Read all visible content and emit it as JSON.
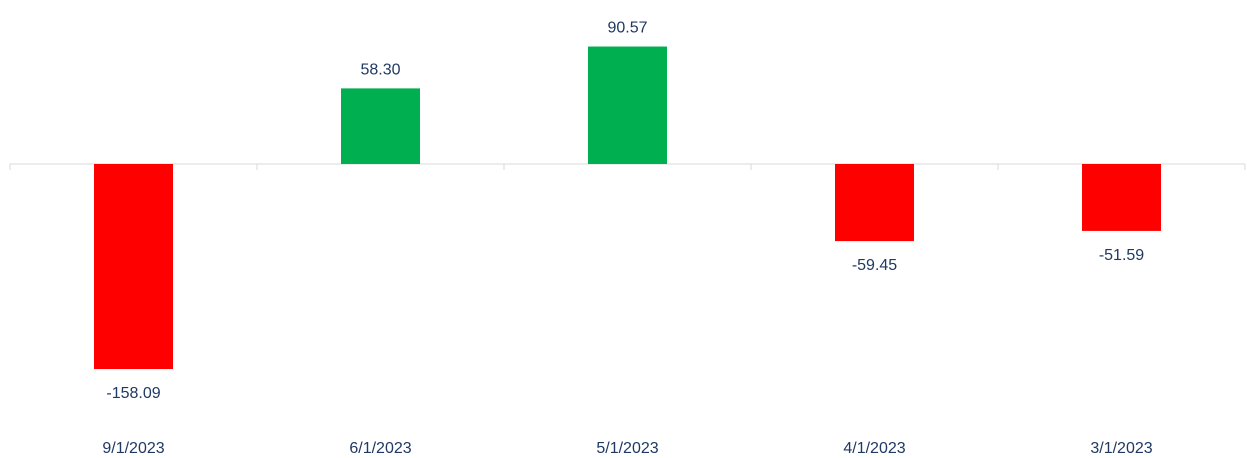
{
  "colors": {
    "positive": "#00b050",
    "negative": "#ff0000",
    "text": "#1f3864",
    "axis": "#d9d9d9",
    "background": "#ffffff"
  },
  "chart_data": {
    "type": "bar",
    "categories": [
      "9/1/2023",
      "6/1/2023",
      "5/1/2023",
      "4/1/2023",
      "3/1/2023"
    ],
    "values": [
      -158.09,
      58.3,
      90.57,
      -59.45,
      -51.59
    ],
    "value_labels": [
      "-158.09",
      "58.30",
      "90.57",
      "-59.45",
      "-51.59"
    ],
    "title": "",
    "xlabel": "",
    "ylabel": "",
    "ylim": [
      -158.09,
      90.57
    ],
    "grid": false,
    "legend": "none",
    "data_labels": true
  }
}
